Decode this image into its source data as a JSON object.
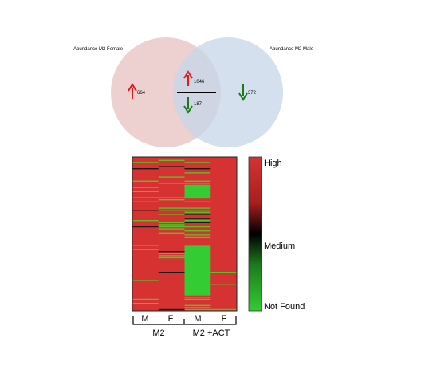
{
  "venn": {
    "left_label": "Abundance M2 Female",
    "right_label": "Abundance M2 Male",
    "left_only_count": "664",
    "right_only_count": "372",
    "overlap_up_count": "1046",
    "overlap_down_count": "187",
    "colors": {
      "left_circle": "#eccfcf",
      "right_circle": "#cfdbea",
      "overlap": "#d6d0db",
      "up_arrow": "#e01a1a",
      "down_arrow": "#1a7a1a"
    }
  },
  "heatmap": {
    "columns": [
      "M",
      "F",
      "M",
      "F"
    ],
    "groups": [
      "M2",
      "M2 +ACT"
    ],
    "legend": {
      "high_label": "High",
      "medium_label": "Medium",
      "low_label": "Not Found",
      "colors": {
        "high": "#d63232",
        "medium": "#000000",
        "low": "#33cc33"
      }
    }
  }
}
